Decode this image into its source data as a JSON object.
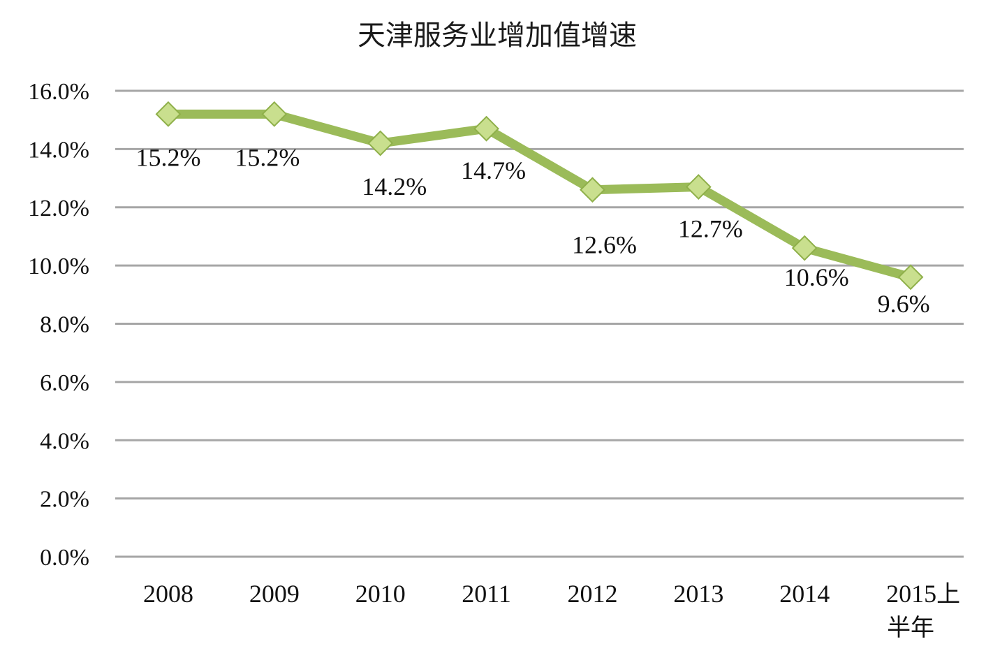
{
  "chart_data": {
    "type": "line",
    "title": "天津服务业增加值增速",
    "xlabel": "",
    "ylabel": "",
    "categories": [
      "2008",
      "2009",
      "2010",
      "2011",
      "2012",
      "2013",
      "2014",
      "2015上半年"
    ],
    "series": [
      {
        "values": [
          15.2,
          15.2,
          14.2,
          14.7,
          12.6,
          12.7,
          10.6,
          9.6
        ],
        "data_labels": [
          "15.2%",
          "15.2%",
          "14.2%",
          "14.7%",
          "12.6%",
          "12.7%",
          "10.6%",
          "9.6%"
        ],
        "color": "#9bbb59",
        "marker_fill": "#c9df8e",
        "marker_stroke": "#8fb04a",
        "marker": "diamond"
      }
    ],
    "ylim": [
      0,
      16
    ],
    "y_ticks": [
      0,
      2,
      4,
      6,
      8,
      10,
      12,
      14,
      16
    ],
    "y_tick_labels": [
      "0.0%",
      "2.0%",
      "4.0%",
      "6.0%",
      "8.0%",
      "10.0%",
      "12.0%",
      "14.0%",
      "16.0%"
    ],
    "grid": true,
    "legend": "none",
    "colors": {
      "grid": "#a6a6a6",
      "text": "#111111"
    }
  }
}
